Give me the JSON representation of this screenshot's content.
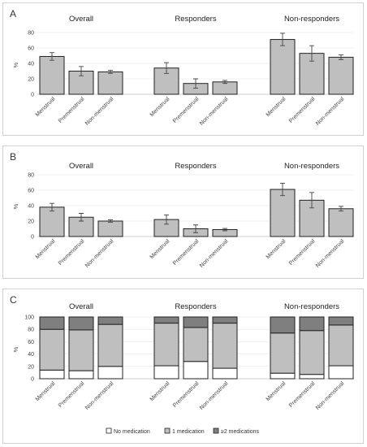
{
  "chart_data": [
    {
      "type": "bar",
      "panel": "A",
      "ylabel": "%",
      "ylim": [
        0,
        80
      ],
      "yticks": [
        0,
        20,
        40,
        60,
        80
      ],
      "groups": [
        {
          "title": "Overall",
          "categories": [
            "Menstrual",
            "Premenstrual",
            "Non-menstrual"
          ],
          "values": [
            49,
            30,
            29
          ],
          "errors": [
            5,
            6,
            2
          ]
        },
        {
          "title": "Responders",
          "categories": [
            "Menstrual",
            "Premenstrual",
            "Non-menstrual"
          ],
          "values": [
            34,
            14,
            16
          ],
          "errors": [
            7,
            6,
            2
          ]
        },
        {
          "title": "Non-responders",
          "categories": [
            "Menstrual",
            "Premenstrual",
            "Non-menstrual"
          ],
          "values": [
            71,
            53,
            48
          ],
          "errors": [
            8,
            10,
            3
          ]
        }
      ]
    },
    {
      "type": "bar",
      "panel": "B",
      "ylabel": "%",
      "ylim": [
        0,
        80
      ],
      "yticks": [
        0,
        20,
        40,
        60,
        80
      ],
      "groups": [
        {
          "title": "Overall",
          "categories": [
            "Menstrual",
            "Premenstrual",
            "Non-menstrual"
          ],
          "values": [
            38,
            25,
            20
          ],
          "errors": [
            5,
            5,
            1.5
          ]
        },
        {
          "title": "Responders",
          "categories": [
            "Menstrual",
            "Premenstrual",
            "Non-menstrual"
          ],
          "values": [
            22,
            10,
            9
          ],
          "errors": [
            6,
            5,
            1.5
          ]
        },
        {
          "title": "Non-responders",
          "categories": [
            "Menstrual",
            "Premenstrual",
            "Non-menstrual"
          ],
          "values": [
            61,
            47,
            36
          ],
          "errors": [
            8,
            10,
            3
          ]
        }
      ]
    },
    {
      "type": "stacked-bar",
      "panel": "C",
      "ylabel": "%",
      "ylim": [
        0,
        100
      ],
      "yticks": [
        0,
        20,
        40,
        60,
        80,
        100
      ],
      "legend": [
        "No medication",
        "1 medication",
        "≥2 medications"
      ],
      "legend_position": "bottom",
      "colors": [
        "#ffffff",
        "#bfbfbf",
        "#7f7f7f"
      ],
      "groups": [
        {
          "title": "Overall",
          "categories": [
            "Menstrual",
            "Premenstrual",
            "Non-menstrual"
          ],
          "stacks": [
            [
              14,
              66,
              20
            ],
            [
              13,
              66,
              21
            ],
            [
              20,
              68,
              12
            ]
          ]
        },
        {
          "title": "Responders",
          "categories": [
            "Menstrual",
            "Premenstrual",
            "Non-menstrual"
          ],
          "stacks": [
            [
              21,
              69,
              10
            ],
            [
              28,
              55,
              17
            ],
            [
              17,
              73,
              10
            ]
          ]
        },
        {
          "title": "Non-responders",
          "categories": [
            "Menstrual",
            "Premenstrual",
            "Non-menstrual"
          ],
          "stacks": [
            [
              9,
              65,
              26
            ],
            [
              7,
              71,
              22
            ],
            [
              21,
              66,
              13
            ]
          ]
        }
      ]
    }
  ]
}
